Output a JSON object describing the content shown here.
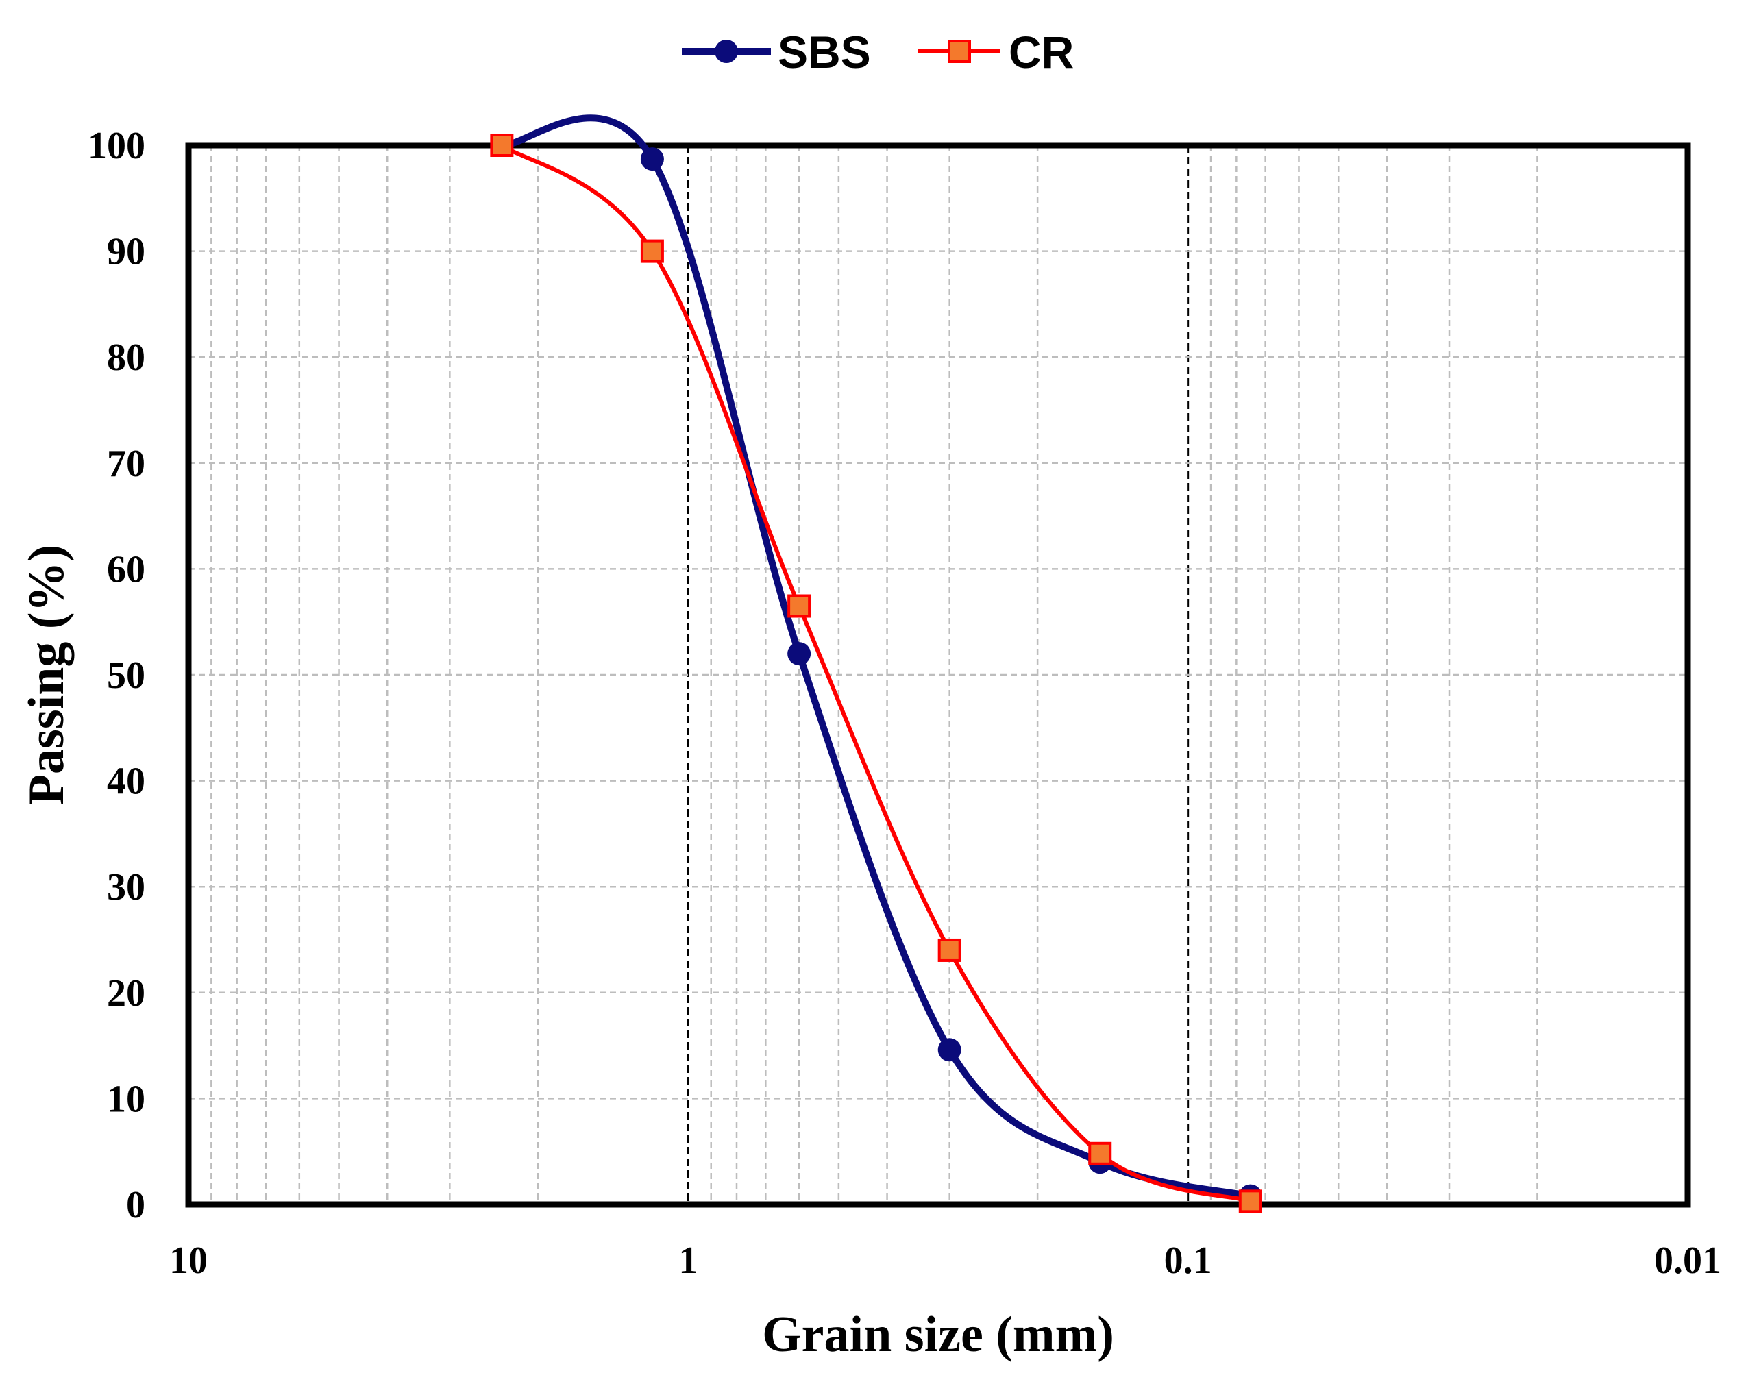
{
  "chart_data": {
    "type": "line",
    "xlabel": "Grain size (mm)",
    "ylabel": "Passing (%)",
    "x_scale": "log",
    "x_reversed": true,
    "xlim": [
      10,
      0.01
    ],
    "ylim": [
      0,
      100
    ],
    "x_ticks": [
      {
        "value": 10,
        "label": "10"
      },
      {
        "value": 1,
        "label": "1"
      },
      {
        "value": 0.1,
        "label": "0.1"
      },
      {
        "value": 0.01,
        "label": "0.01"
      }
    ],
    "y_ticks": [
      {
        "value": 0,
        "label": "0"
      },
      {
        "value": 10,
        "label": "10"
      },
      {
        "value": 20,
        "label": "20"
      },
      {
        "value": 30,
        "label": "30"
      },
      {
        "value": 40,
        "label": "40"
      },
      {
        "value": 50,
        "label": "50"
      },
      {
        "value": 60,
        "label": "60"
      },
      {
        "value": 70,
        "label": "70"
      },
      {
        "value": 80,
        "label": "80"
      },
      {
        "value": 90,
        "label": "90"
      },
      {
        "value": 100,
        "label": "100"
      }
    ],
    "grid": true,
    "legend_position": "top-center",
    "series": [
      {
        "name": "SBS",
        "color": "#0b0b7a",
        "marker": "circle",
        "x": [
          2.36,
          1.18,
          0.6,
          0.3,
          0.15,
          0.075
        ],
        "y": [
          100,
          98.7,
          52,
          14.6,
          4,
          0.8
        ]
      },
      {
        "name": "CR",
        "color": "#ff0000",
        "marker_fill": "#f4792c",
        "marker": "square",
        "x": [
          2.36,
          1.18,
          0.6,
          0.3,
          0.15,
          0.075
        ],
        "y": [
          100,
          90,
          56.5,
          24,
          4.8,
          0.3
        ]
      }
    ]
  }
}
